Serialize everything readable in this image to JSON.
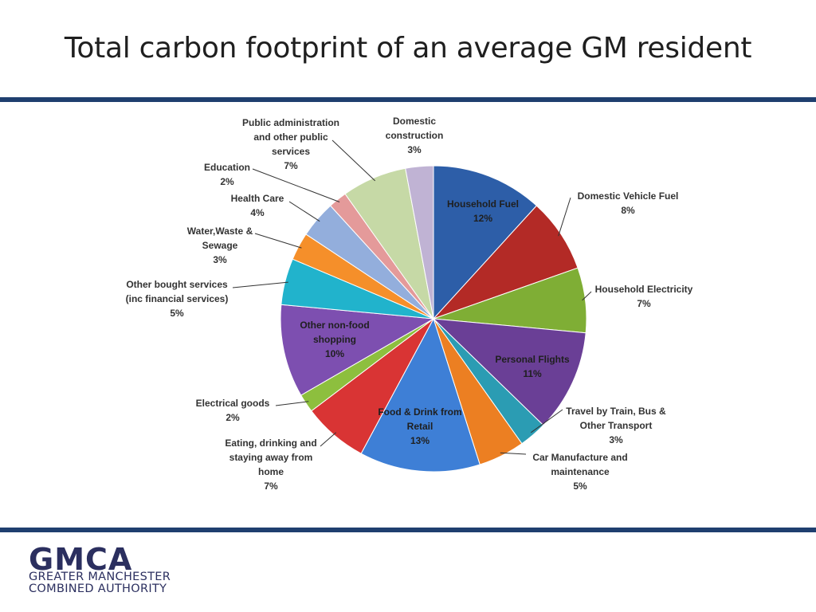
{
  "slide": {
    "title": "Total carbon footprint of an average GM resident"
  },
  "logo": {
    "wordmark": "GMCA",
    "line1": "GREATER MANCHESTER",
    "line2": "COMBINED AUTHORITY"
  },
  "chart_data": {
    "type": "pie",
    "title": "Total carbon footprint of an average GM resident",
    "unit": "%",
    "start": "12 o'clock",
    "direction": "clockwise",
    "slices": [
      {
        "label": "Household Fuel",
        "value": 12,
        "color": "#2d5ea8"
      },
      {
        "label": "Domestic Vehicle Fuel",
        "value": 8,
        "color": "#b32a26"
      },
      {
        "label": "Household Electricity",
        "value": 7,
        "color": "#7fae35"
      },
      {
        "label": "Personal Flights",
        "value": 11,
        "color": "#6a3f96"
      },
      {
        "label": "Travel by Train, Bus & Other Transport",
        "value": 3,
        "color": "#2b9cb3"
      },
      {
        "label": "Car Manufacture and maintenance",
        "value": 5,
        "color": "#ec7f22"
      },
      {
        "label": "Food & Drink from Retail",
        "value": 13,
        "color": "#3e7fd6"
      },
      {
        "label": "Eating, drinking and staying away from home",
        "value": 7,
        "color": "#d93434"
      },
      {
        "label": "Electrical goods",
        "value": 2,
        "color": "#8dbf3e"
      },
      {
        "label": "Other non-food shopping",
        "value": 10,
        "color": "#7d4fb0"
      },
      {
        "label": "Other bought services (inc financial services)",
        "value": 5,
        "color": "#21b3cc"
      },
      {
        "label": "Water,Waste & Sewage",
        "value": 3,
        "color": "#f58f2a"
      },
      {
        "label": "Health Care",
        "value": 4,
        "color": "#93aedc"
      },
      {
        "label": "Education",
        "value": 2,
        "color": "#e49a9a"
      },
      {
        "label": "Public administration and other public services",
        "value": 7,
        "color": "#c6d9a6"
      },
      {
        "label": "Domestic construction",
        "value": 3,
        "color": "#c0b3d4"
      }
    ],
    "label_lines": [
      [
        "Household Fuel",
        "12%"
      ],
      [
        "Domestic Vehicle Fuel",
        "8%"
      ],
      [
        "Household Electricity",
        "7%"
      ],
      [
        "Personal Flights",
        "11%"
      ],
      [
        "Travel by Train, Bus &",
        "Other Transport",
        "3%"
      ],
      [
        "Car Manufacture and",
        "maintenance",
        "5%"
      ],
      [
        "Food & Drink from",
        "Retail",
        "13%"
      ],
      [
        "Eating, drinking and",
        "staying away from",
        "home",
        "7%"
      ],
      [
        "Electrical goods",
        "2%"
      ],
      [
        "Other non-food",
        "shopping",
        "10%"
      ],
      [
        "Other bought services",
        "(inc financial services)",
        "5%"
      ],
      [
        "Water,Waste &",
        "Sewage",
        "3%"
      ],
      [
        "Health Care",
        "4%"
      ],
      [
        "Education",
        "2%"
      ],
      [
        "Public administration",
        "and other public",
        "services",
        "7%"
      ],
      [
        "Domestic",
        "construction",
        "3%"
      ]
    ]
  }
}
